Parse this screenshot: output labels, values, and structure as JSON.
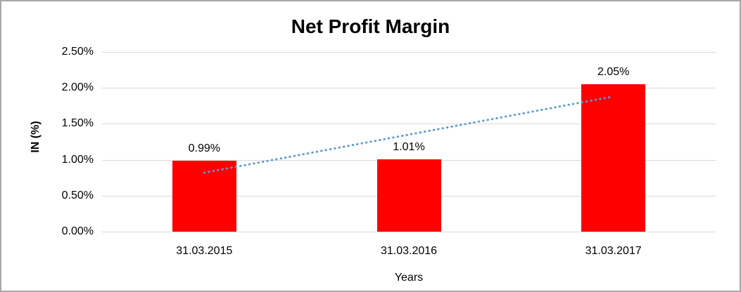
{
  "window": {
    "background": "#ffffff",
    "border_color": "#a8a8a8"
  },
  "chart_data": {
    "type": "bar",
    "title": "Net Profit Margin",
    "xlabel": "Years",
    "ylabel": "IN (%)",
    "categories": [
      "31.03.2015",
      "31.03.2016",
      "31.03.2017"
    ],
    "values": [
      0.99,
      1.01,
      2.05
    ],
    "data_labels": [
      "0.99%",
      "1.01%",
      "2.05%"
    ],
    "y_ticks": [
      {
        "label": "0.00%",
        "value": 0.0
      },
      {
        "label": "0.50%",
        "value": 0.5
      },
      {
        "label": "1.00%",
        "value": 1.0
      },
      {
        "label": "1.50%",
        "value": 1.5
      },
      {
        "label": "2.00%",
        "value": 2.0
      },
      {
        "label": "2.50%",
        "value": 2.5
      }
    ],
    "ylim": [
      0,
      2.5
    ],
    "grid": true,
    "legend": "none",
    "bar_color": "#ff0000",
    "gridline_color": "#d9d9d9",
    "text_color": "#000000",
    "trendline": {
      "type": "linear",
      "style": "dotted",
      "color": "#5b9bd5",
      "start_value": 0.82,
      "end_value": 1.88
    }
  }
}
